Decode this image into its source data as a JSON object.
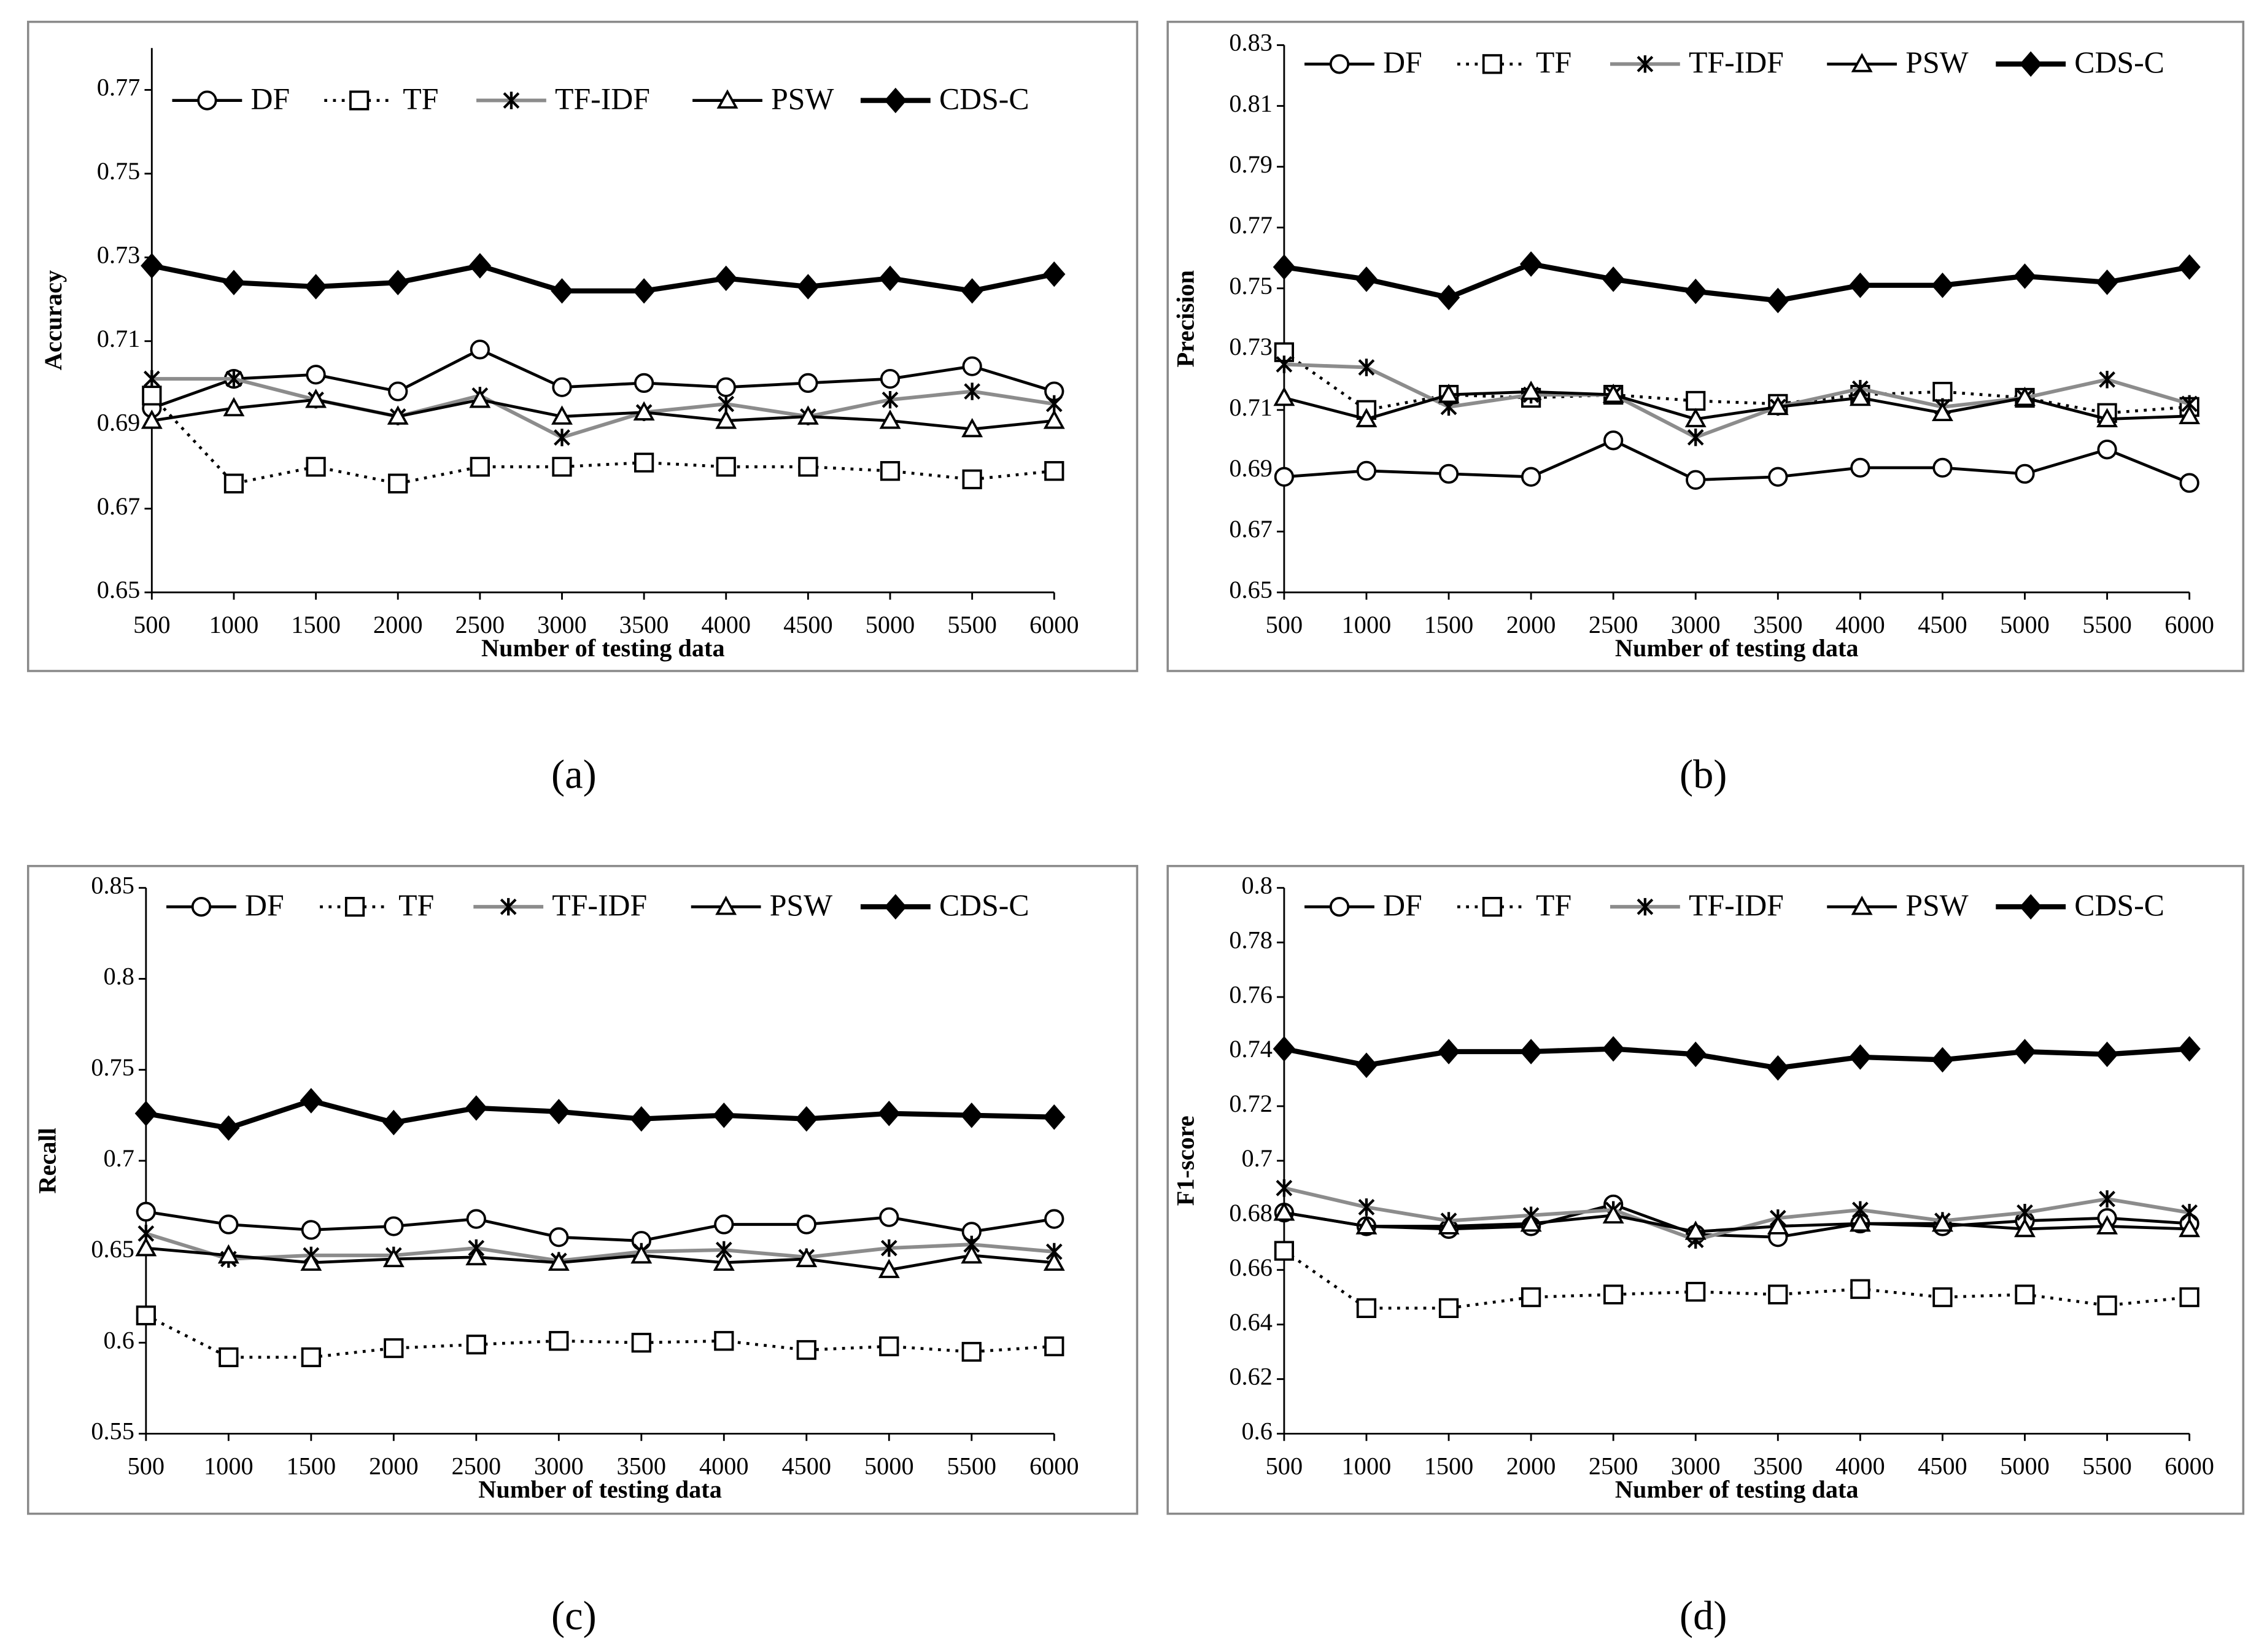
{
  "chart_data": [
    {
      "type": "line",
      "panel_label": "(a)",
      "y_label": "Accuracy",
      "x_label": "Number of testing data",
      "x": [
        500,
        1000,
        1500,
        2000,
        2500,
        3000,
        3500,
        4000,
        4500,
        5000,
        5500,
        6000
      ],
      "xlim": [
        500,
        6000
      ],
      "xticks": [
        500,
        1000,
        1500,
        2000,
        2500,
        3000,
        3500,
        4000,
        4500,
        5000,
        5500,
        6000
      ],
      "ylim": [
        0.65,
        0.78
      ],
      "yticks": [
        0.65,
        0.67,
        0.69,
        0.71,
        0.73,
        0.75,
        0.77
      ],
      "legend": "top",
      "series": [
        {
          "name": "DF",
          "color": "#000000",
          "marker": "circle",
          "line_style": "solid",
          "line_width": 2,
          "values": [
            0.694,
            0.701,
            0.702,
            0.698,
            0.708,
            0.699,
            0.7,
            0.699,
            0.7,
            0.701,
            0.704,
            0.698
          ]
        },
        {
          "name": "TF",
          "color": "#000000",
          "marker": "square",
          "line_style": "dotted",
          "line_width": 2,
          "values": [
            0.697,
            0.676,
            0.68,
            0.676,
            0.68,
            0.68,
            0.681,
            0.68,
            0.68,
            0.679,
            0.677,
            0.679
          ]
        },
        {
          "name": "TF-IDF",
          "color": "#8c8c8c",
          "marker": "x",
          "line_style": "solid",
          "line_width": 2.5,
          "values": [
            0.701,
            0.701,
            0.696,
            0.692,
            0.697,
            0.687,
            0.693,
            0.695,
            0.692,
            0.696,
            0.698,
            0.695
          ]
        },
        {
          "name": "PSW",
          "color": "#000000",
          "marker": "triangle",
          "line_style": "solid",
          "line_width": 2,
          "values": [
            0.691,
            0.694,
            0.696,
            0.692,
            0.696,
            0.692,
            0.693,
            0.691,
            0.692,
            0.691,
            0.689,
            0.691
          ]
        },
        {
          "name": "CDS-C",
          "color": "#000000",
          "marker": "diamond",
          "line_style": "solid",
          "line_width": 3.5,
          "values": [
            0.728,
            0.724,
            0.723,
            0.724,
            0.728,
            0.722,
            0.722,
            0.725,
            0.723,
            0.725,
            0.722,
            0.726
          ]
        }
      ]
    },
    {
      "type": "line",
      "panel_label": "(b)",
      "y_label": "Precision",
      "x_label": "Number of testing data",
      "x": [
        500,
        1000,
        1500,
        2000,
        2500,
        3000,
        3500,
        4000,
        4500,
        5000,
        5500,
        6000
      ],
      "xlim": [
        500,
        6000
      ],
      "xticks": [
        500,
        1000,
        1500,
        2000,
        2500,
        3000,
        3500,
        4000,
        4500,
        5000,
        5500,
        6000
      ],
      "ylim": [
        0.65,
        0.83
      ],
      "yticks": [
        0.65,
        0.67,
        0.69,
        0.71,
        0.73,
        0.75,
        0.77,
        0.79,
        0.81,
        0.83
      ],
      "legend": "top",
      "series": [
        {
          "name": "DF",
          "color": "#000000",
          "marker": "circle",
          "line_style": "solid",
          "line_width": 2,
          "values": [
            0.688,
            0.69,
            0.689,
            0.688,
            0.7,
            0.687,
            0.688,
            0.691,
            0.691,
            0.689,
            0.697,
            0.686
          ]
        },
        {
          "name": "TF",
          "color": "#000000",
          "marker": "square",
          "line_style": "dotted",
          "line_width": 2,
          "values": [
            0.729,
            0.71,
            0.715,
            0.714,
            0.715,
            0.713,
            0.712,
            0.715,
            0.716,
            0.714,
            0.709,
            0.711
          ]
        },
        {
          "name": "TF-IDF",
          "color": "#8c8c8c",
          "marker": "x",
          "line_style": "solid",
          "line_width": 2.5,
          "values": [
            0.725,
            0.724,
            0.711,
            0.715,
            0.715,
            0.701,
            0.711,
            0.717,
            0.711,
            0.714,
            0.72,
            0.712
          ]
        },
        {
          "name": "PSW",
          "color": "#000000",
          "marker": "triangle",
          "line_style": "solid",
          "line_width": 2,
          "values": [
            0.714,
            0.707,
            0.715,
            0.716,
            0.715,
            0.707,
            0.711,
            0.714,
            0.709,
            0.714,
            0.707,
            0.708
          ]
        },
        {
          "name": "CDS-C",
          "color": "#000000",
          "marker": "diamond",
          "line_style": "solid",
          "line_width": 3.5,
          "values": [
            0.757,
            0.753,
            0.747,
            0.758,
            0.753,
            0.749,
            0.746,
            0.751,
            0.751,
            0.754,
            0.752,
            0.757
          ]
        }
      ]
    },
    {
      "type": "line",
      "panel_label": "(c)",
      "y_label": "Recall",
      "x_label": "Number of testing data",
      "x": [
        500,
        1000,
        1500,
        2000,
        2500,
        3000,
        3500,
        4000,
        4500,
        5000,
        5500,
        6000
      ],
      "xlim": [
        500,
        6000
      ],
      "xticks": [
        500,
        1000,
        1500,
        2000,
        2500,
        3000,
        3500,
        4000,
        4500,
        5000,
        5500,
        6000
      ],
      "ylim": [
        0.55,
        0.85
      ],
      "yticks": [
        0.55,
        0.6,
        0.65,
        0.7,
        0.75,
        0.8,
        0.85
      ],
      "legend": "top",
      "series": [
        {
          "name": "DF",
          "color": "#000000",
          "marker": "circle",
          "line_style": "solid",
          "line_width": 2,
          "values": [
            0.672,
            0.665,
            0.662,
            0.664,
            0.668,
            0.658,
            0.656,
            0.665,
            0.665,
            0.669,
            0.661,
            0.668
          ]
        },
        {
          "name": "TF",
          "color": "#000000",
          "marker": "square",
          "line_style": "dotted",
          "line_width": 2,
          "values": [
            0.615,
            0.592,
            0.592,
            0.597,
            0.599,
            0.601,
            0.6,
            0.601,
            0.596,
            0.598,
            0.595,
            0.598
          ]
        },
        {
          "name": "TF-IDF",
          "color": "#8c8c8c",
          "marker": "x",
          "line_style": "solid",
          "line_width": 2.5,
          "values": [
            0.66,
            0.646,
            0.648,
            0.648,
            0.652,
            0.645,
            0.65,
            0.651,
            0.647,
            0.652,
            0.654,
            0.65
          ]
        },
        {
          "name": "PSW",
          "color": "#000000",
          "marker": "triangle",
          "line_style": "solid",
          "line_width": 2,
          "values": [
            0.652,
            0.648,
            0.644,
            0.646,
            0.647,
            0.644,
            0.648,
            0.644,
            0.646,
            0.64,
            0.648,
            0.644
          ]
        },
        {
          "name": "CDS-C",
          "color": "#000000",
          "marker": "diamond",
          "line_style": "solid",
          "line_width": 3.5,
          "values": [
            0.726,
            0.718,
            0.733,
            0.721,
            0.729,
            0.727,
            0.723,
            0.725,
            0.723,
            0.726,
            0.725,
            0.724
          ]
        }
      ]
    },
    {
      "type": "line",
      "panel_label": "(d)",
      "y_label": "F1-score",
      "x_label": "Number of testing data",
      "x": [
        500,
        1000,
        1500,
        2000,
        2500,
        3000,
        3500,
        4000,
        4500,
        5000,
        5500,
        6000
      ],
      "xlim": [
        500,
        6000
      ],
      "xticks": [
        500,
        1000,
        1500,
        2000,
        2500,
        3000,
        3500,
        4000,
        4500,
        5000,
        5500,
        6000
      ],
      "ylim": [
        0.6,
        0.8
      ],
      "yticks": [
        0.6,
        0.62,
        0.64,
        0.66,
        0.68,
        0.7,
        0.72,
        0.74,
        0.76,
        0.78,
        0.8
      ],
      "legend": "top",
      "series": [
        {
          "name": "DF",
          "color": "#000000",
          "marker": "circle",
          "line_style": "solid",
          "line_width": 2,
          "values": [
            0.681,
            0.676,
            0.675,
            0.676,
            0.684,
            0.673,
            0.672,
            0.677,
            0.676,
            0.678,
            0.679,
            0.677
          ]
        },
        {
          "name": "TF",
          "color": "#000000",
          "marker": "square",
          "line_style": "dotted",
          "line_width": 2,
          "values": [
            0.667,
            0.646,
            0.646,
            0.65,
            0.651,
            0.652,
            0.651,
            0.653,
            0.65,
            0.651,
            0.647,
            0.65
          ]
        },
        {
          "name": "TF-IDF",
          "color": "#8c8c8c",
          "marker": "x",
          "line_style": "solid",
          "line_width": 2.5,
          "values": [
            0.69,
            0.683,
            0.678,
            0.68,
            0.682,
            0.671,
            0.679,
            0.682,
            0.678,
            0.681,
            0.686,
            0.681
          ]
        },
        {
          "name": "PSW",
          "color": "#000000",
          "marker": "triangle",
          "line_style": "solid",
          "line_width": 2,
          "values": [
            0.681,
            0.676,
            0.676,
            0.677,
            0.68,
            0.674,
            0.676,
            0.677,
            0.677,
            0.675,
            0.676,
            0.675
          ]
        },
        {
          "name": "CDS-C",
          "color": "#000000",
          "marker": "diamond",
          "line_style": "solid",
          "line_width": 3.5,
          "values": [
            0.741,
            0.735,
            0.74,
            0.74,
            0.741,
            0.739,
            0.734,
            0.738,
            0.737,
            0.74,
            0.739,
            0.741
          ]
        }
      ]
    }
  ]
}
